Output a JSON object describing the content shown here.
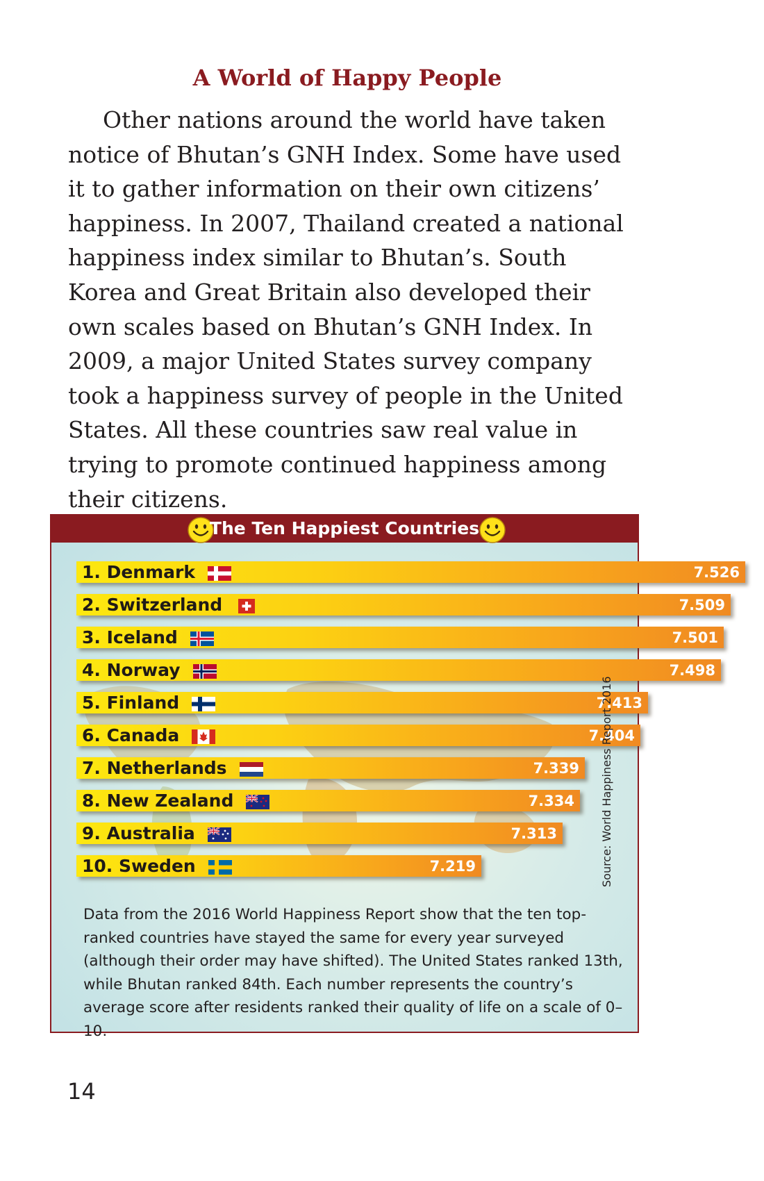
{
  "heading": "A World of Happy People",
  "paragraph": "Other nations around the world have taken notice of Bhutan’s GNH Index. Some have used it to gather information on their own citizens’ happiness. In 2007, Thailand created a national happiness index similar to Bhutan’s. South Korea and Great Britain also developed their own scales based on Bhutan’s GNH Index. In 2009, a major United States survey company took a happiness survey of people in the United States. All these countries saw real value in trying to promote continued happiness among their citizens.",
  "figure": {
    "title": "The Ten Happiest Countries",
    "source": "Source: World Happiness Report 2016",
    "caption": "Data from the 2016 World Happiness Report show that the ten top-ranked countries have stayed the same for every year surveyed (although their order may have shifted). The United States ranked 13th, while Bhutan ranked 84th. Each number represents the country’s average score after residents ranked their quality of life on a scale of 0–10."
  },
  "chart_data": {
    "type": "bar",
    "orientation": "horizontal",
    "title": "The Ten Happiest Countries",
    "categories": [
      "1. Denmark",
      "2. Switzerland",
      "3. Iceland",
      "4. Norway",
      "5. Finland",
      "6. Canada",
      "7. Netherlands",
      "8. New Zealand",
      "9. Australia",
      "10. Sweden"
    ],
    "values": [
      7.526,
      7.509,
      7.501,
      7.498,
      7.413,
      7.404,
      7.339,
      7.334,
      7.313,
      7.219
    ],
    "value_labels": [
      "7.526",
      "7.509",
      "7.501",
      "7.498",
      "7.413",
      "7.404",
      "7.339",
      "7.334",
      "7.313",
      "7.219"
    ],
    "flags": [
      "denmark",
      "switzerland",
      "iceland",
      "norway",
      "finland",
      "canada",
      "netherlands",
      "new-zealand",
      "australia",
      "sweden"
    ],
    "xlabel": "",
    "ylabel": ""
  },
  "page_number": "14",
  "colors": {
    "accent": "#8a1b20",
    "bar_start": "#fde810",
    "bar_end": "#f08a22"
  }
}
